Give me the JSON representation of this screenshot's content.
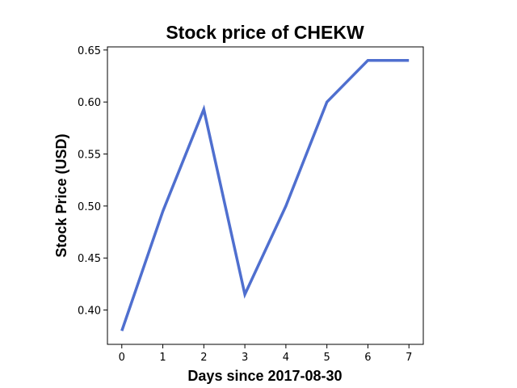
{
  "chart_data": {
    "type": "line",
    "title": "Stock price of CHEKW",
    "xlabel": "Days since 2017-08-30",
    "ylabel": "Stock Price (USD)",
    "x": [
      0,
      1,
      2,
      3,
      4,
      5,
      6,
      7
    ],
    "series": [
      {
        "values": [
          0.38,
          0.495,
          0.593,
          0.415,
          0.5,
          0.6,
          0.64,
          0.64
        ],
        "color": "#4f6fcf"
      }
    ],
    "xlim": [
      -0.35,
      7.35
    ],
    "ylim": [
      0.367,
      0.653
    ],
    "xticks": [
      "0",
      "1",
      "2",
      "3",
      "4",
      "5",
      "6",
      "7"
    ],
    "yticks": [
      "0.40",
      "0.45",
      "0.50",
      "0.55",
      "0.60",
      "0.65"
    ],
    "grid": false,
    "legend": "none"
  }
}
